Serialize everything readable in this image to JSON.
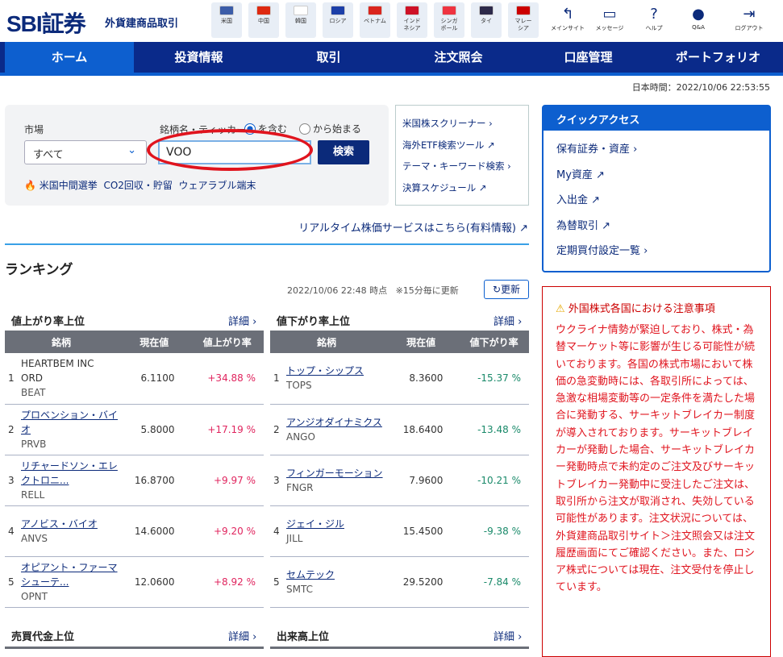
{
  "header": {
    "logo": "SBI証券",
    "subtitle": "外貨建商品取引",
    "countries": [
      {
        "label": "米国",
        "color": "#3b5ca8"
      },
      {
        "label": "中国",
        "color": "#de2910"
      },
      {
        "label": "韓国",
        "color": "#ffffff"
      },
      {
        "label": "ロシア",
        "color": "#1c3fa8"
      },
      {
        "label": "ベトナム",
        "color": "#da251d"
      },
      {
        "label": "インド\nネシア",
        "color": "#ce1126"
      },
      {
        "label": "シンガ\nポール",
        "color": "#ef3340"
      },
      {
        "label": "タイ",
        "color": "#2d2a4a"
      },
      {
        "label": "マレー\nシア",
        "color": "#cc0001"
      }
    ],
    "utilities": [
      {
        "label": "メインサイト",
        "icon": "return-icon"
      },
      {
        "label": "メッセージ",
        "icon": "message-icon"
      },
      {
        "label": "ヘルプ",
        "icon": "help-icon"
      },
      {
        "label": "Q&A",
        "icon": "qa-icon"
      },
      {
        "label": "ログアウト",
        "icon": "logout-icon"
      }
    ]
  },
  "nav": [
    "ホーム",
    "投資情報",
    "取引",
    "注文照会",
    "口座管理",
    "ポートフォリオ"
  ],
  "time": "日本時間：2022/10/06 22:53:55",
  "search": {
    "market_label": "市場",
    "market_value": "すべて",
    "name_label": "銘柄名・ティッカー",
    "radio_contains": "を含む",
    "radio_starts": "から始まる",
    "query": "VOO",
    "button": "検索",
    "keywords": [
      "米国中間選挙",
      "CO2回収・貯留",
      "ウェアラブル端末"
    ]
  },
  "links": [
    "米国株スクリーナー",
    "海外ETF検索ツール",
    "テーマ・キーワード検索",
    "決算スケジュール"
  ],
  "realtime": "リアルタイム株価サービスはこちら(有料情報)",
  "ranking": {
    "title": "ランキング",
    "timestamp": "2022/10/06 22:48 時点",
    "note": "※15分毎に更新",
    "refresh": "更新",
    "more": "詳細",
    "gainers": {
      "title": "値上がり率上位",
      "headers": [
        "銘柄",
        "現在値",
        "値上がり率"
      ],
      "rows": [
        {
          "rank": "1",
          "name": "HEARTBEM INC ORD",
          "ticker": "BEAT",
          "price": "6.1100",
          "change": "+34.88 %",
          "link": false
        },
        {
          "rank": "2",
          "name": "プロベンション・バイオ",
          "ticker": "PRVB",
          "price": "5.8000",
          "change": "+17.19 %",
          "link": true
        },
        {
          "rank": "3",
          "name": "リチャードソン・エレクトロニ...",
          "ticker": "RELL",
          "price": "16.8700",
          "change": "+9.97 %",
          "link": true
        },
        {
          "rank": "4",
          "name": "アノビス・バイオ",
          "ticker": "ANVS",
          "price": "14.6000",
          "change": "+9.20 %",
          "link": true
        },
        {
          "rank": "5",
          "name": "オピアント・ファーマシューテ...",
          "ticker": "OPNT",
          "price": "12.0600",
          "change": "+8.92 %",
          "link": true
        }
      ]
    },
    "losers": {
      "title": "値下がり率上位",
      "headers": [
        "銘柄",
        "現在値",
        "値下がり率"
      ],
      "rows": [
        {
          "rank": "1",
          "name": "トップ・シップス",
          "ticker": "TOPS",
          "price": "8.3600",
          "change": "-15.37 %",
          "link": true
        },
        {
          "rank": "2",
          "name": "アンジオダイナミクス",
          "ticker": "ANGO",
          "price": "18.6400",
          "change": "-13.48 %",
          "link": true
        },
        {
          "rank": "3",
          "name": "フィンガーモーション",
          "ticker": "FNGR",
          "price": "7.9600",
          "change": "-10.21 %",
          "link": true
        },
        {
          "rank": "4",
          "name": "ジェイ・ジル",
          "ticker": "JILL",
          "price": "15.4500",
          "change": "-9.38 %",
          "link": true
        },
        {
          "rank": "5",
          "name": "セムテック",
          "ticker": "SMTC",
          "price": "29.5200",
          "change": "-7.84 %",
          "link": true
        }
      ]
    },
    "trading_value_title": "売買代金上位",
    "volume_title": "出来高上位"
  },
  "quick_access": {
    "title": "クイックアクセス",
    "items": [
      "保有証券・資産",
      "My資産",
      "入出金",
      "為替取引",
      "定期買付設定一覧"
    ]
  },
  "warning": {
    "title": "外国株式各国における注意事項",
    "body": "ウクライナ情勢が緊迫しており、株式・為替マーケット等に影響が生じる可能性が続いております。各国の株式市場において株価の急変動時には、各取引所によっては、急激な相場変動等の一定条件を満たした場合に発動する、サーキットブレイカー制度が導入されております。サーキットブレイカーが発動した場合、サーキットブレイカー発動時点で未約定のご注文及びサーキットブレイカー発動中に受注したご注文は、取引所から注文が取消され、失効している可能性があります。注文状況については、外貨建商品取引サイト＞注文照会又は注文履歴画面にてご確認ください。また、ロシア株式については現在、注文受付を停止しています。"
  }
}
